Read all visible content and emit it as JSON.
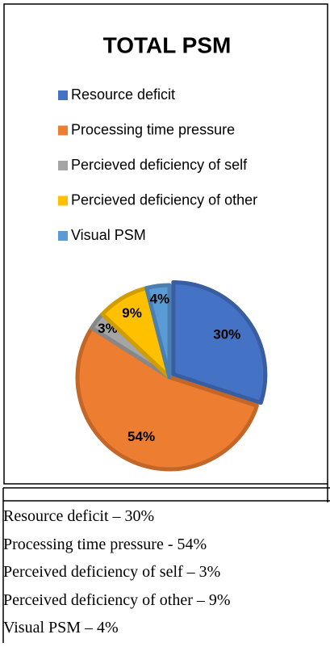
{
  "chart_data": {
    "type": "pie",
    "title": "TOTAL PSM",
    "categories": [
      "Resource deficit",
      "Processing time pressure",
      "Percieved deficiency of self",
      "Percieved deficiency of other",
      "Visual PSM"
    ],
    "values": [
      30,
      54,
      3,
      9,
      4
    ],
    "value_labels": [
      "30%",
      "54%",
      "3%",
      "9%",
      "4%"
    ],
    "colors": [
      "#4472c4",
      "#ed7d31",
      "#a5a5a5",
      "#ffc000",
      "#5b9bd5"
    ],
    "legend": "top"
  },
  "caption": {
    "lines": [
      "Resource deficit – 30%",
      "Processing time pressure - 54%",
      "Perceived deficiency of self – 3%",
      "Perceived deficiency of other – 9%",
      "Visual PSM – 4%"
    ]
  }
}
